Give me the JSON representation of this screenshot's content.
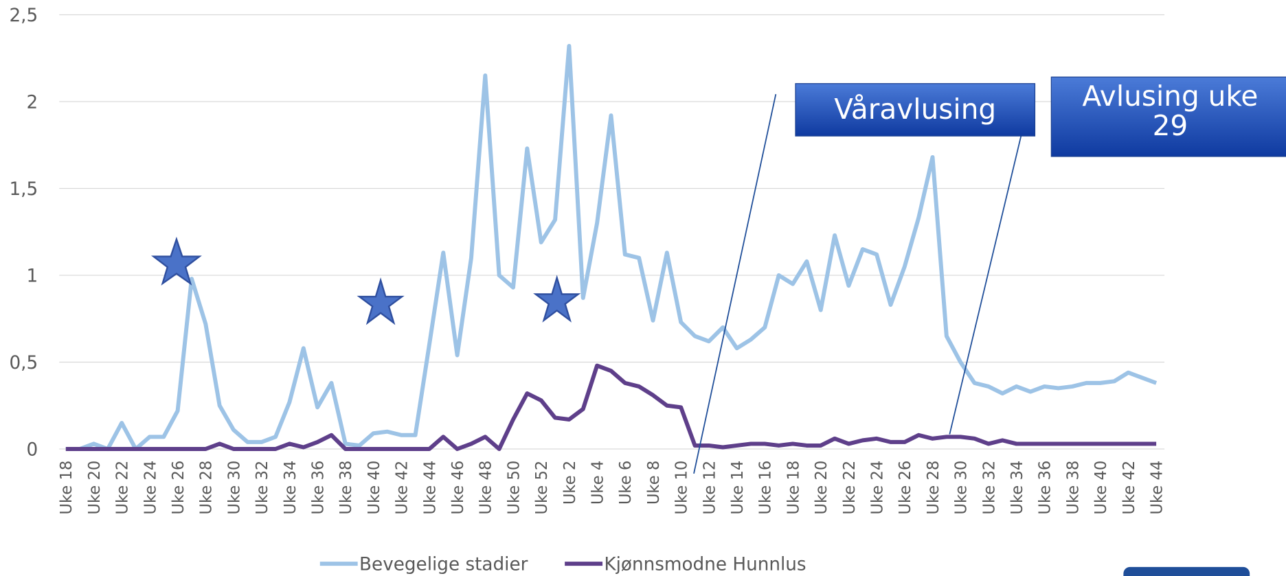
{
  "chart_data": {
    "type": "line",
    "categories": [
      "Uke 18",
      null,
      "Uke 20",
      null,
      "Uke 22",
      null,
      "Uke 24",
      null,
      "Uke 26",
      null,
      "Uke 28",
      null,
      "Uke 30",
      null,
      "Uke 32",
      null,
      "Uke 34",
      null,
      "Uke 36",
      null,
      "Uke 38",
      null,
      "Uke 40",
      null,
      "Uke 42",
      null,
      "Uke 44",
      null,
      "Uke 46",
      null,
      "Uke 48",
      null,
      "Uke 50",
      null,
      "Uke 52",
      null,
      "Uke 2",
      null,
      "Uke 4",
      null,
      "Uke 6",
      null,
      "Uke 8",
      null,
      "Uke 10",
      null,
      "Uke 12",
      null,
      "Uke 14",
      null,
      "Uke 16",
      null,
      "Uke 18",
      null,
      "Uke 20",
      null,
      "Uke 22",
      null,
      "Uke 24",
      null,
      "Uke 26",
      null,
      "Uke 28",
      null,
      "Uke 30",
      null,
      "Uke 32",
      null,
      "Uke 34",
      null,
      "Uke 36",
      null,
      "Uke 38",
      null,
      "Uke 40",
      null,
      "Uke 42",
      null,
      "Uke 44"
    ],
    "series": [
      {
        "name": "Bevegelige stadier",
        "color": "#9dc3e6",
        "values": [
          0,
          0,
          0.03,
          0,
          0.15,
          0,
          0.07,
          0.07,
          0.22,
          0.98,
          0.72,
          0.25,
          0.11,
          0.04,
          0.04,
          0.07,
          0.27,
          0.58,
          0.24,
          0.38,
          0.03,
          0.02,
          0.09,
          0.1,
          0.08,
          0.08,
          0.6,
          1.13,
          0.54,
          1.1,
          2.15,
          1.0,
          0.93,
          1.73,
          1.19,
          1.32,
          2.32,
          0.87,
          1.3,
          1.92,
          1.12,
          1.1,
          0.74,
          1.13,
          0.73,
          0.65,
          0.62,
          0.7,
          0.58,
          0.63,
          0.7,
          1.0,
          0.95,
          1.08,
          0.8,
          1.23,
          0.94,
          1.15,
          1.12,
          0.83,
          1.05,
          1.33,
          1.68,
          0.65,
          0.5,
          0.38,
          0.36,
          0.32,
          0.36,
          0.33,
          0.36,
          0.35,
          0.36,
          0.38,
          0.38,
          0.39,
          0.44,
          0.41,
          0.38
        ]
      },
      {
        "name": "Kjønnsmodne Hunnlus",
        "color": "#5e3f8a",
        "values": [
          0,
          0,
          0,
          0,
          0,
          0,
          0,
          0,
          0,
          0,
          0,
          0.03,
          0,
          0,
          0,
          0,
          0.03,
          0.01,
          0.04,
          0.08,
          0,
          0,
          0,
          0,
          0,
          0,
          0,
          0.07,
          0,
          0.03,
          0.07,
          0,
          0.17,
          0.32,
          0.28,
          0.18,
          0.17,
          0.23,
          0.48,
          0.45,
          0.38,
          0.36,
          0.31,
          0.25,
          0.24,
          0.02,
          0.02,
          0.01,
          0.02,
          0.03,
          0.03,
          0.02,
          0.03,
          0.02,
          0.02,
          0.06,
          0.03,
          0.05,
          0.06,
          0.04,
          0.04,
          0.08,
          0.06,
          0.07,
          0.07,
          0.06,
          0.03,
          0.05,
          0.03,
          0.03,
          0.03,
          0.03,
          0.03,
          0.03,
          0.03,
          0.03,
          0.03,
          0.03,
          0.03
        ]
      }
    ],
    "ylim": [
      0,
      2.5
    ],
    "yticks": [
      0,
      {
        "value": 0.5,
        "label": "0,5"
      },
      1,
      {
        "value": 1.5,
        "label": "1,5"
      },
      2,
      {
        "value": 2.5,
        "label": "2,5"
      }
    ],
    "grid": true,
    "legend": "bottom",
    "annotations": [
      "Våravlusing",
      "Avlusing uke 29"
    ]
  }
}
